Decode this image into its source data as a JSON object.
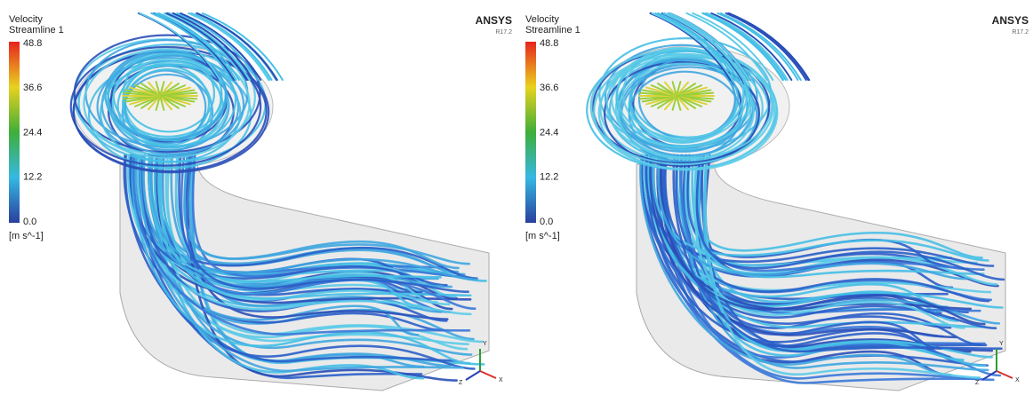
{
  "panels": [
    {
      "legend": {
        "title": "Velocity",
        "subtitle": "Streamline 1",
        "ticks": [
          "48.8",
          "36.6",
          "24.4",
          "12.2",
          "0.0"
        ],
        "unit": "[m s^-1]"
      },
      "brand": "ANSYS",
      "version": "R17.2",
      "axes": {
        "y": "Y",
        "x": "X",
        "z": "Z"
      }
    },
    {
      "legend": {
        "title": "Velocity",
        "subtitle": "Streamline 1",
        "ticks": [
          "48.8",
          "36.6",
          "24.4",
          "12.2",
          "0.0"
        ],
        "unit": "[m s^-1]"
      },
      "brand": "ANSYS",
      "version": "R17.2",
      "axes": {
        "y": "Y",
        "x": "X",
        "z": "Z"
      }
    }
  ]
}
